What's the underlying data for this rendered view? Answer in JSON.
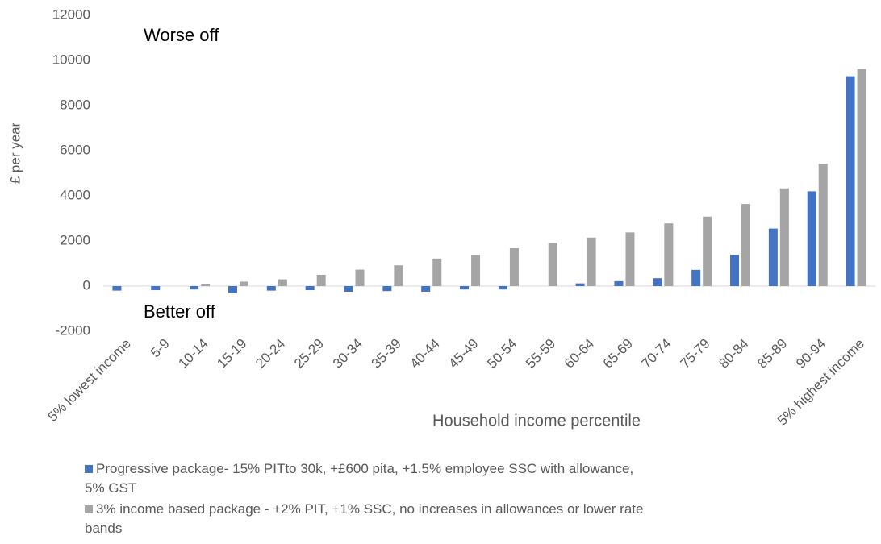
{
  "chart_data": {
    "type": "bar",
    "y_label": "£ per year",
    "x_label": "Household income percentile",
    "annotations": [
      "Worse off",
      "Better off"
    ],
    "categories": [
      "5% lowest income",
      "5-9",
      "10-14",
      "15-19",
      "20-24",
      "25-29",
      "30-34",
      "35-39",
      "40-44",
      "45-49",
      "50-54",
      "55-59",
      "60-64",
      "65-69",
      "70-74",
      "75-79",
      "80-84",
      "85-89",
      "90-94",
      "5% highest income"
    ],
    "series": [
      {
        "name": "Progressive package- 15% PITto 30k, +£600 pita, +1.5% employee SSC with allowance, 5% GST",
        "color": "#4472c4",
        "values": [
          -200,
          -180,
          -150,
          -300,
          -200,
          -180,
          -250,
          -220,
          -250,
          -150,
          -150,
          0,
          120,
          220,
          350,
          720,
          1380,
          2550,
          4200,
          9300
        ]
      },
      {
        "name": "3% income based package - +2% PIT, +1% SSC, no increases in allowances or lower rate bands",
        "color": "#a5a5a5",
        "values": [
          0,
          0,
          100,
          200,
          300,
          500,
          730,
          920,
          1220,
          1370,
          1680,
          1930,
          2150,
          2380,
          2780,
          3080,
          3640,
          4330,
          5420,
          9620
        ]
      }
    ],
    "ylim": [
      -2000,
      12000
    ],
    "yticks": [
      -2000,
      0,
      2000,
      4000,
      6000,
      8000,
      10000,
      12000
    ],
    "grid": false
  }
}
